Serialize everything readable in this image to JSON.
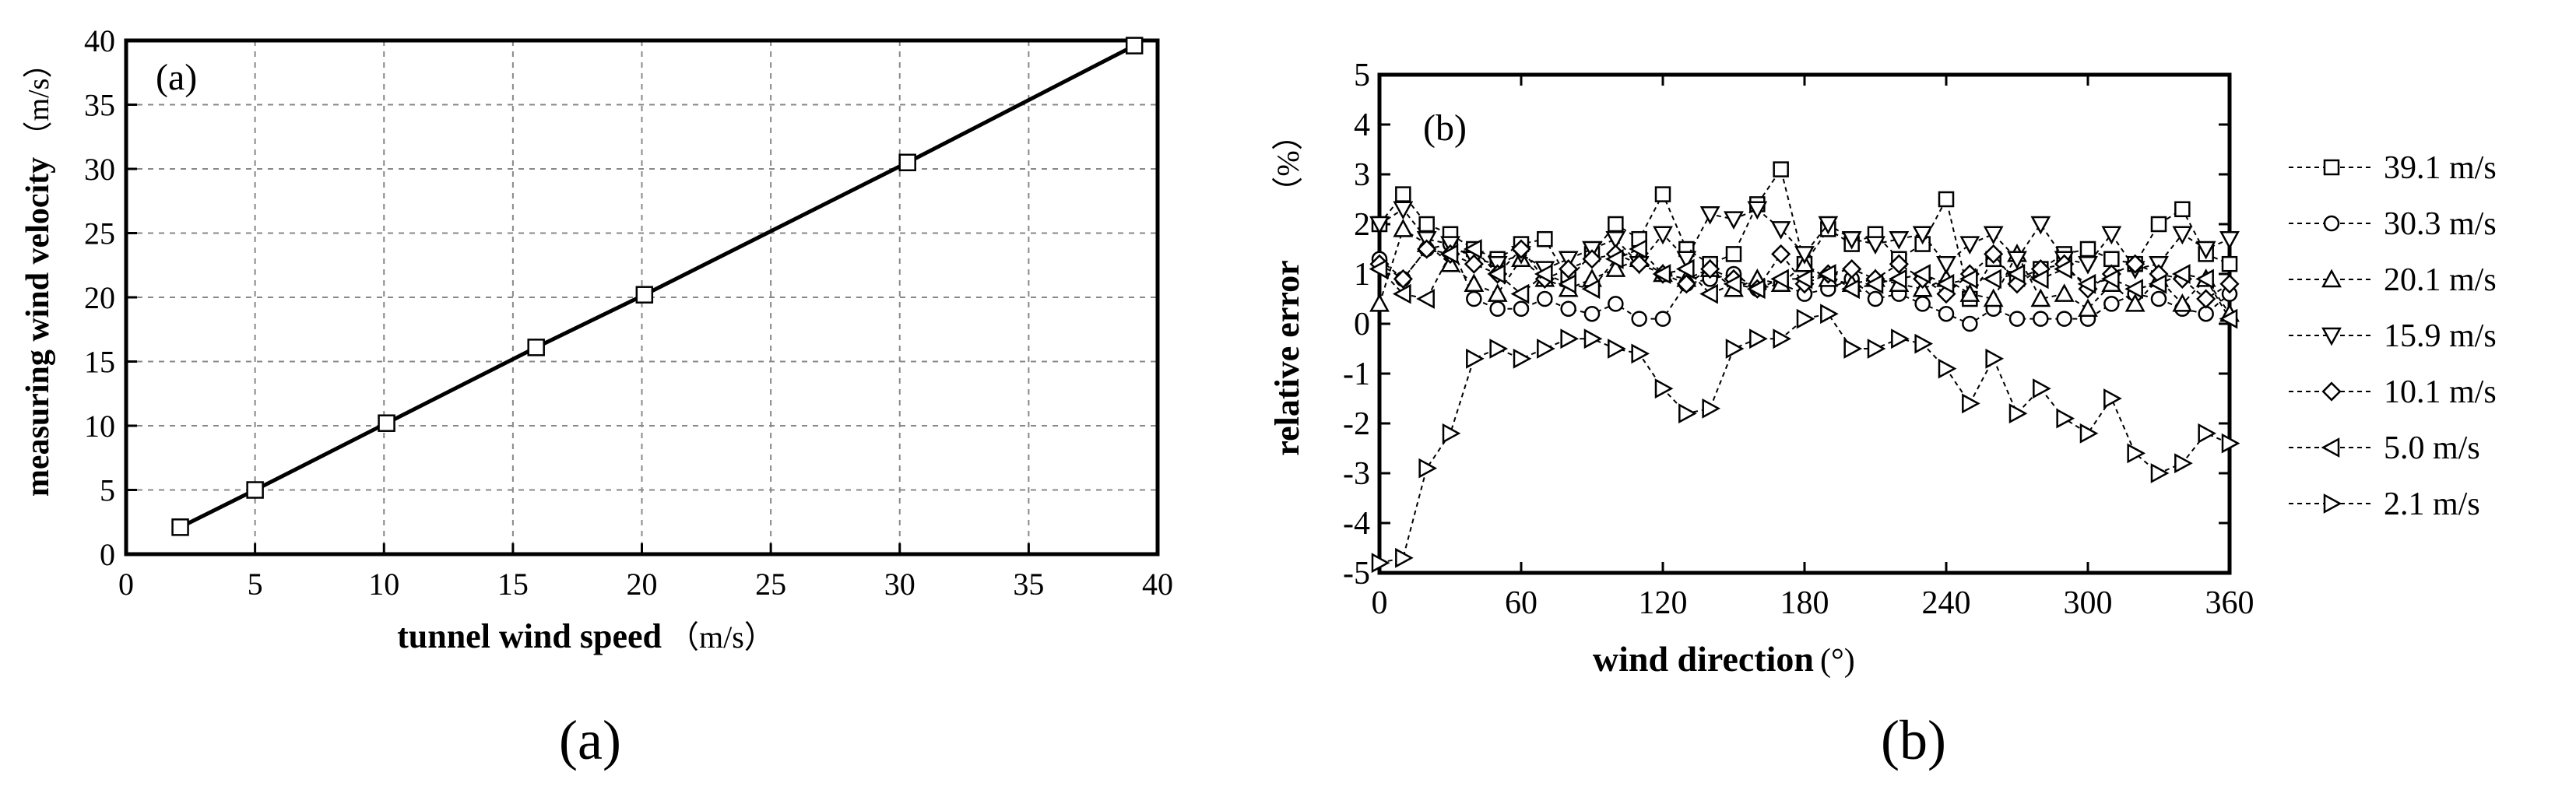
{
  "chart_data": [
    {
      "type": "line",
      "panel_tag": "(a)",
      "caption": "(a)",
      "xlabel": "tunnel wind speed",
      "xlabel_unit": "（m/s）",
      "ylabel": "measuring wind velocity",
      "ylabel_unit": "（m/s）",
      "xlim": [
        0,
        40
      ],
      "ylim": [
        0,
        40
      ],
      "xticks": [
        "0",
        "5",
        "10",
        "15",
        "20",
        "25",
        "30",
        "35",
        "40"
      ],
      "yticks": [
        "0",
        "5",
        "10",
        "15",
        "20",
        "25",
        "30",
        "35",
        "40"
      ],
      "grid": true,
      "series": [
        {
          "marker": "square",
          "x": [
            2.1,
            5.0,
            10.1,
            15.9,
            20.1,
            30.3,
            39.1
          ],
          "y": [
            2.1,
            5.0,
            10.2,
            16.1,
            20.2,
            30.5,
            39.6
          ]
        }
      ]
    },
    {
      "type": "line",
      "panel_tag": "(b)",
      "caption": "(b)",
      "xlabel": "wind direction",
      "xlabel_unit": "(°)",
      "ylabel": "relative error",
      "ylabel_unit": "（%）",
      "xlim": [
        0,
        360
      ],
      "ylim": [
        -5,
        5
      ],
      "xticks": [
        "0",
        "60",
        "120",
        "180",
        "240",
        "300",
        "360"
      ],
      "yticks": [
        "-5",
        "-4",
        "-3",
        "-2",
        "-1",
        "0",
        "1",
        "2",
        "3",
        "4",
        "5"
      ],
      "grid": false,
      "legend": "right",
      "x": [
        0,
        10,
        20,
        30,
        40,
        50,
        60,
        70,
        80,
        90,
        100,
        110,
        120,
        130,
        140,
        150,
        160,
        170,
        180,
        190,
        200,
        210,
        220,
        230,
        240,
        250,
        260,
        270,
        280,
        290,
        300,
        310,
        320,
        330,
        340,
        350,
        360
      ],
      "series": [
        {
          "name": "39.1 m/s",
          "marker": "square",
          "values": [
            2.0,
            2.6,
            2.0,
            1.8,
            1.5,
            1.3,
            1.6,
            1.7,
            0.9,
            1.4,
            2.0,
            1.7,
            2.6,
            1.5,
            1.2,
            1.4,
            2.4,
            3.1,
            1.2,
            1.9,
            1.6,
            1.8,
            1.3,
            1.6,
            2.5,
            0.5,
            1.3,
            0.9,
            1.1,
            1.4,
            1.5,
            1.3,
            1.2,
            2.0,
            2.3,
            1.4,
            1.2
          ]
        },
        {
          "name": "30.3 m/s",
          "marker": "circle",
          "values": [
            1.3,
            0.9,
            1.5,
            1.6,
            0.5,
            0.3,
            0.3,
            0.5,
            0.3,
            0.2,
            0.4,
            0.1,
            0.1,
            0.8,
            0.9,
            1.0,
            0.7,
            0.8,
            0.6,
            0.7,
            0.9,
            0.5,
            0.6,
            0.4,
            0.2,
            0.0,
            0.3,
            0.1,
            0.1,
            0.1,
            0.1,
            0.4,
            0.6,
            0.5,
            0.3,
            0.2,
            0.6
          ]
        },
        {
          "name": "20.1 m/s",
          "marker": "triangle-up",
          "values": [
            0.4,
            1.9,
            1.6,
            1.2,
            0.8,
            0.6,
            1.3,
            0.9,
            0.7,
            0.9,
            1.1,
            1.3,
            1.0,
            0.9,
            1.1,
            0.7,
            0.9,
            0.8,
            1.2,
            0.9,
            0.8,
            0.9,
            0.8,
            0.7,
            0.9,
            0.6,
            0.5,
            1.4,
            0.5,
            0.6,
            0.3,
            0.8,
            0.4,
            0.9,
            0.4,
            0.9,
            0.2
          ]
        },
        {
          "name": "15.9 m/s",
          "marker": "triangle-down",
          "values": [
            2.0,
            2.3,
            1.7,
            1.6,
            1.3,
            1.2,
            1.4,
            1.1,
            1.3,
            1.5,
            1.7,
            1.2,
            1.8,
            1.3,
            2.2,
            2.1,
            2.3,
            1.9,
            1.4,
            2.0,
            1.7,
            1.6,
            1.7,
            1.8,
            1.2,
            1.6,
            1.8,
            1.3,
            2.0,
            1.3,
            1.2,
            1.8,
            1.1,
            1.2,
            1.8,
            1.5,
            1.7
          ]
        },
        {
          "name": "10.1 m/s",
          "marker": "diamond",
          "values": [
            1.2,
            0.9,
            1.5,
            1.4,
            1.2,
            1.0,
            1.5,
            0.9,
            1.1,
            1.3,
            1.4,
            1.2,
            1.0,
            0.8,
            1.1,
            0.9,
            0.7,
            1.4,
            0.8,
            1.0,
            1.1,
            0.9,
            1.2,
            0.9,
            0.6,
            1.0,
            1.4,
            0.8,
            1.1,
            1.2,
            0.7,
            1.0,
            1.2,
            1.0,
            0.9,
            0.5,
            0.8
          ]
        },
        {
          "name": "5.0 m/s",
          "marker": "triangle-left",
          "values": [
            1.1,
            0.6,
            0.5,
            1.4,
            1.5,
            1.0,
            0.6,
            1.0,
            0.8,
            0.7,
            1.3,
            1.5,
            1.0,
            1.1,
            0.6,
            0.8,
            0.7,
            0.9,
            0.9,
            1.0,
            0.7,
            0.8,
            0.9,
            1.0,
            0.8,
            0.9,
            0.9,
            1.0,
            0.9,
            1.1,
            0.8,
            0.9,
            0.7,
            0.8,
            1.0,
            0.9,
            0.1
          ]
        },
        {
          "name": "2.1 m/s",
          "marker": "triangle-right",
          "values": [
            -4.8,
            -4.7,
            -2.9,
            -2.2,
            -0.7,
            -0.5,
            -0.7,
            -0.5,
            -0.3,
            -0.3,
            -0.5,
            -0.6,
            -1.3,
            -1.8,
            -1.7,
            -0.5,
            -0.3,
            -0.3,
            0.1,
            0.2,
            -0.5,
            -0.5,
            -0.3,
            -0.4,
            -0.9,
            -1.6,
            -0.7,
            -1.8,
            -1.3,
            -1.9,
            -2.2,
            -1.5,
            -2.6,
            -3.0,
            -2.8,
            -2.2,
            -2.4
          ]
        }
      ]
    }
  ],
  "captions": {
    "a": "(a)",
    "b": "(b)"
  }
}
